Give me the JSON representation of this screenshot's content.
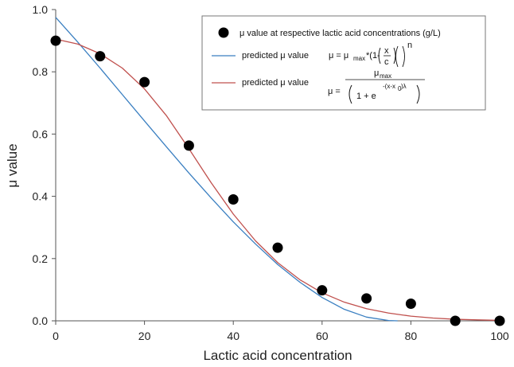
{
  "chart_data": {
    "type": "scatter",
    "xlabel": "Lactic acid concentration",
    "ylabel": "μ value",
    "xlim": [
      0,
      100
    ],
    "ylim": [
      0,
      1.0
    ],
    "xticks": [
      "0",
      "20",
      "40",
      "60",
      "80",
      "100"
    ],
    "yticks": [
      "0.0",
      "0.2",
      "0.4",
      "0.6",
      "0.8",
      "1.0"
    ],
    "grid": false,
    "legend_position": "top-right",
    "series": [
      {
        "name": "μ value at respective lactic acid concentrations (g/L)",
        "kind": "points",
        "color": "#000000",
        "x": [
          0,
          10,
          20,
          30,
          40,
          50,
          60,
          70,
          80,
          90,
          100
        ],
        "y": [
          0.9,
          0.85,
          0.767,
          0.563,
          0.39,
          0.235,
          0.098,
          0.072,
          0.055,
          0.0,
          0.0
        ]
      },
      {
        "name": "predicted μ value",
        "kind": "line",
        "color": "#3a7fc1",
        "x": [
          0,
          5,
          10,
          15,
          20,
          25,
          30,
          35,
          40,
          45,
          50,
          55,
          60,
          65,
          70,
          75,
          77
        ],
        "y": [
          0.975,
          0.895,
          0.812,
          0.727,
          0.642,
          0.558,
          0.475,
          0.395,
          0.318,
          0.247,
          0.181,
          0.124,
          0.075,
          0.037,
          0.012,
          0.001,
          0.0
        ]
      },
      {
        "name": "predicted μ value",
        "kind": "line",
        "color": "#c0504d",
        "x": [
          0,
          5,
          10,
          15,
          20,
          25,
          30,
          35,
          40,
          45,
          50,
          55,
          60,
          65,
          70,
          75,
          80,
          85,
          90,
          95,
          100
        ],
        "y": [
          0.905,
          0.889,
          0.858,
          0.812,
          0.745,
          0.658,
          0.553,
          0.444,
          0.343,
          0.257,
          0.187,
          0.132,
          0.09,
          0.06,
          0.039,
          0.025,
          0.015,
          0.009,
          0.005,
          0.003,
          0.0015
        ]
      }
    ],
    "equations": {
      "power": {
        "lhs": "μ = μ",
        "max_sub": "max",
        "star_one": "*(1-",
        "frac_num": "x",
        "frac_den": "c",
        "exponent": "n"
      },
      "logistic": {
        "lhs": "μ =",
        "numerator": "μ",
        "max_sub": "max",
        "denom_base": "1 + e",
        "denom_exp": "-(x-x",
        "denom_exp_sub": "0",
        "denom_exp_end": ")λ"
      }
    }
  }
}
